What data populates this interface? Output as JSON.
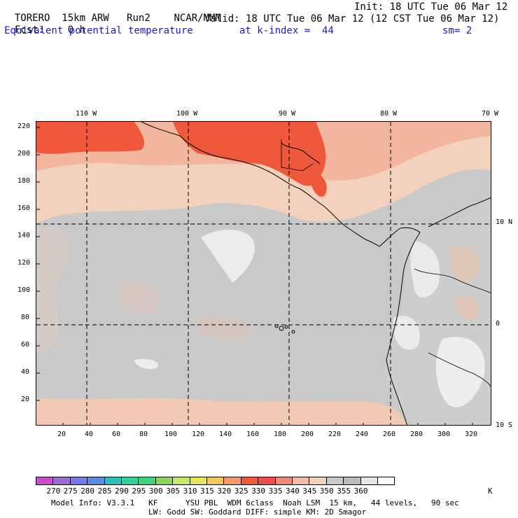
{
  "header": {
    "model": "TORERO",
    "resolution": "15km ARW",
    "run": "Run2",
    "org": "NCAR/MMM",
    "init": "Init: 18 UTC Tue 06 Mar 12",
    "fcst_label": "Fcst:",
    "fcst_value": "0 h",
    "valid": "Valid: 18 UTC Tue 06 Mar 12 (12 CST Tue 06 Mar 12)",
    "field": "Equivalent potential temperature",
    "level": "at k-index =  44",
    "smooth": "sm= 2"
  },
  "map": {
    "top_lon_labels": [
      "110 W",
      "100 W",
      "90 W",
      "80 W",
      "70 W"
    ],
    "right_lat_labels": [
      "10 N",
      "0",
      "10 S"
    ],
    "y_ticks": [
      "220",
      "200",
      "180",
      "160",
      "140",
      "120",
      "100",
      "80",
      "60",
      "40",
      "20"
    ],
    "x_ticks": [
      "20",
      "40",
      "60",
      "80",
      "100",
      "120",
      "140",
      "160",
      "180",
      "200",
      "220",
      "240",
      "260",
      "280",
      "300",
      "320"
    ]
  },
  "colorbar": {
    "labels": [
      "270",
      "275",
      "280",
      "285",
      "290",
      "295",
      "300",
      "305",
      "310",
      "315",
      "320",
      "325",
      "330",
      "335",
      "340",
      "345",
      "350",
      "355",
      "360"
    ],
    "unit": "K",
    "colors": [
      "#c94ec9",
      "#9b6ed6",
      "#7878e6",
      "#5a8ce6",
      "#2fbcbc",
      "#30d0a0",
      "#3ed47e",
      "#8ad65c",
      "#c8e66a",
      "#e6e65c",
      "#f5c85e",
      "#f59a6e",
      "#f0583c",
      "#ef4c4c",
      "#f08a78",
      "#f2bda6",
      "#f3d2bd",
      "#c8c8c8",
      "#bcbcbc",
      "#e6e6e6",
      "#ffffff"
    ]
  },
  "footer": {
    "line1": "Model Info: V3.3.1   KF      YSU PBL  WDM 6class  Noah LSM  15 km,   44 levels,   90 sec",
    "line2": "LW: Godd SW: Goddard DIFF: simple KM: 2D Smagor"
  }
}
